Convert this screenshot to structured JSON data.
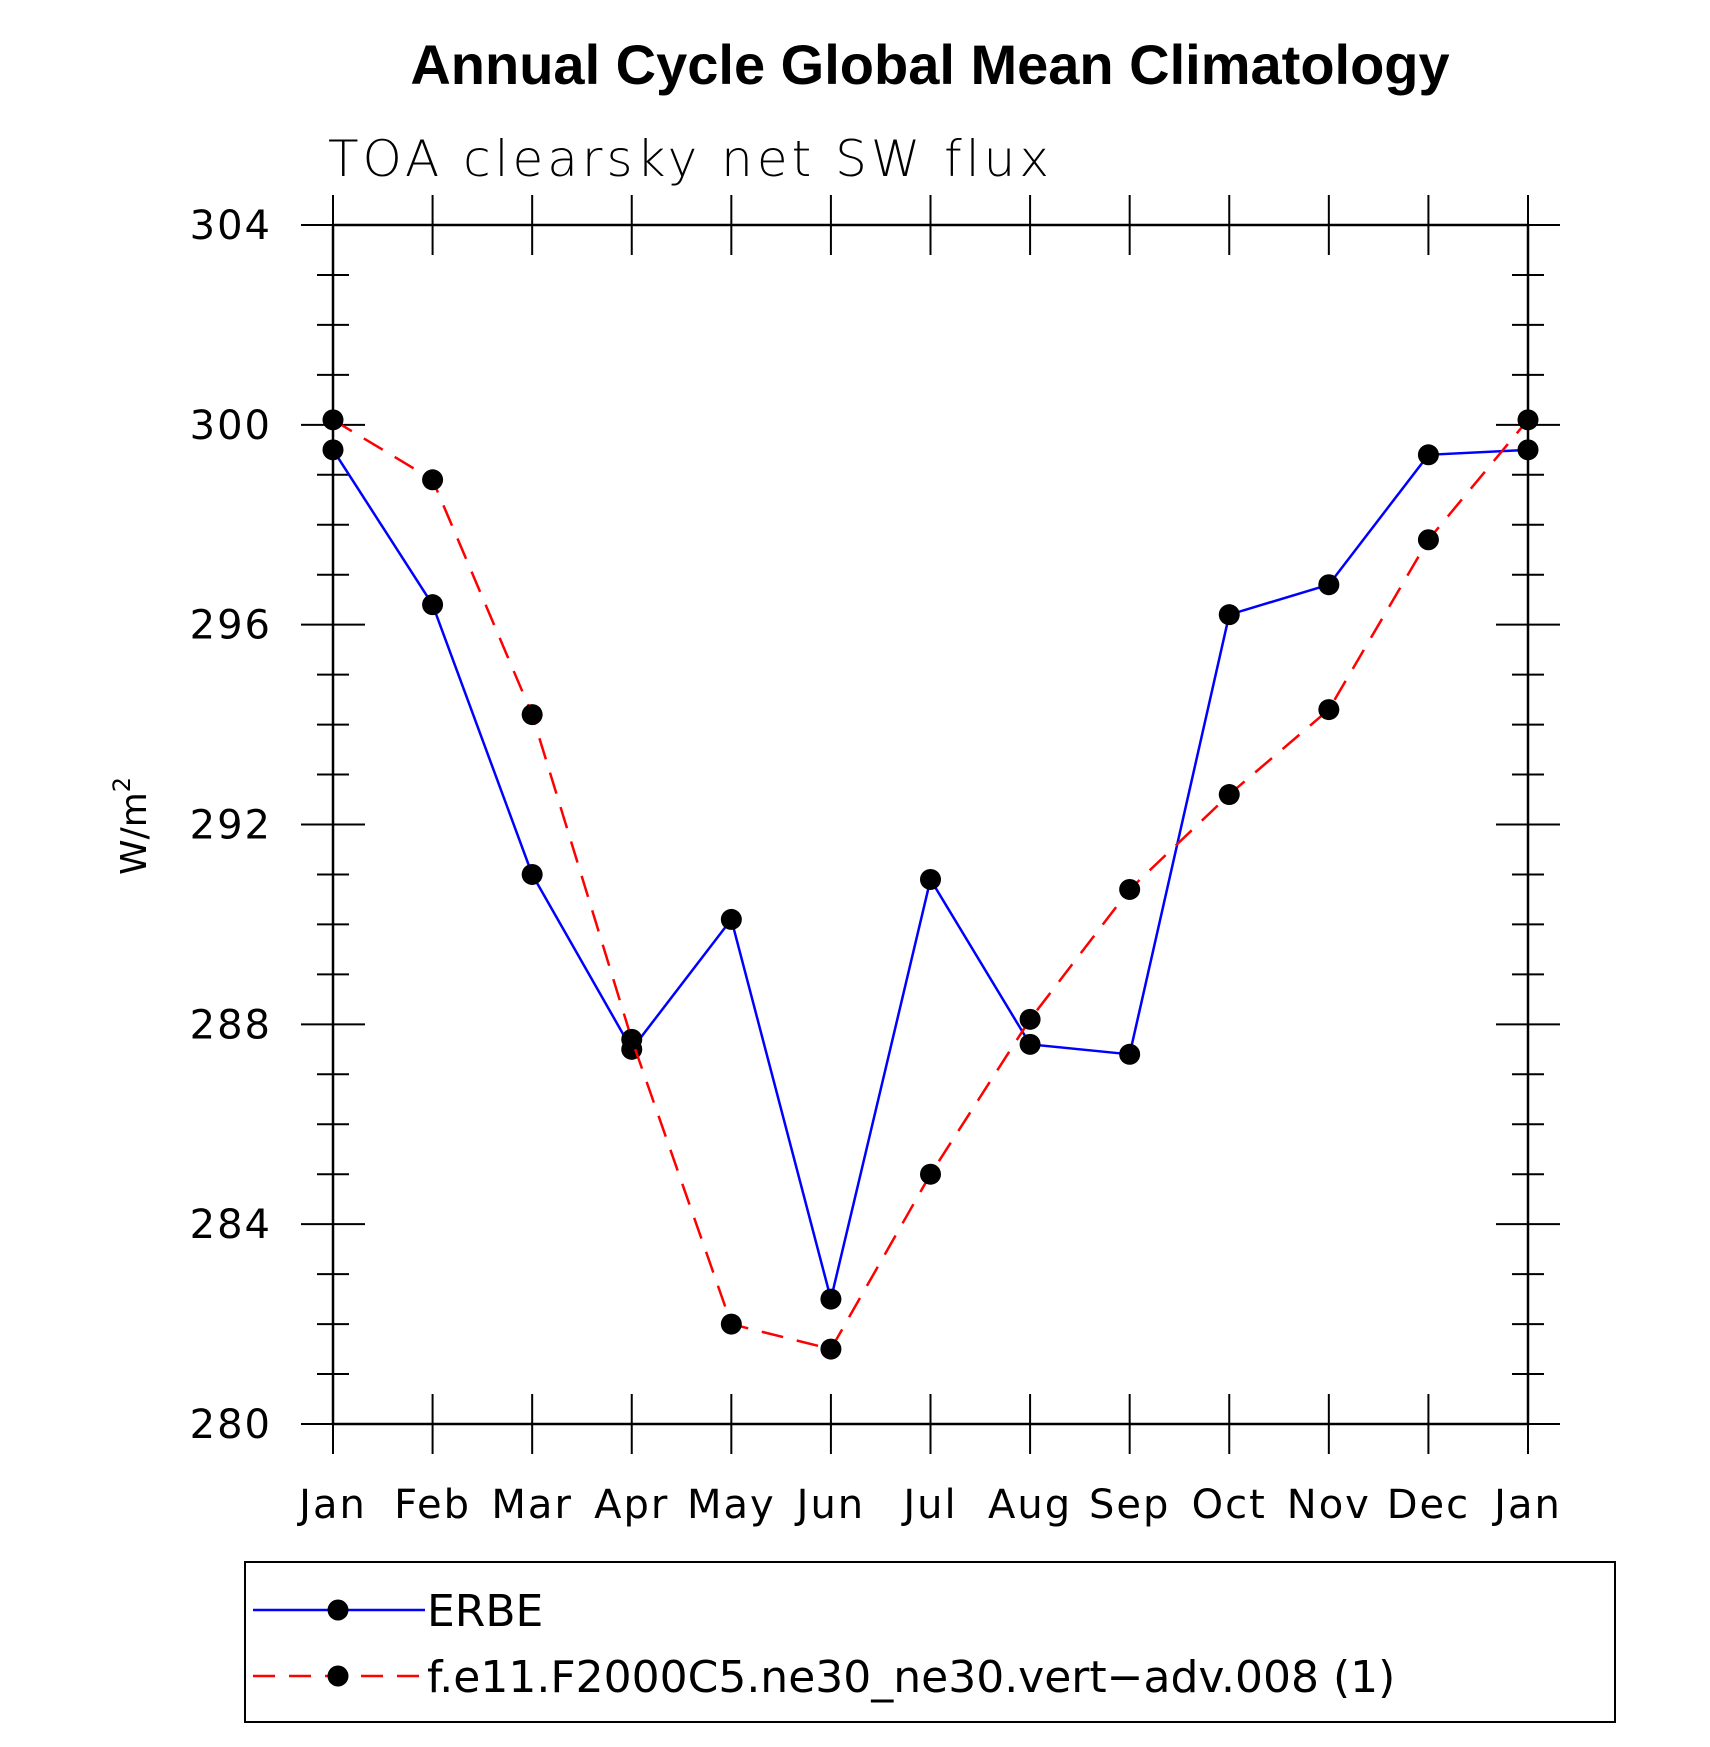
{
  "chart_data": {
    "type": "line",
    "title": "Annual Cycle Global Mean Climatology",
    "subtitle": "TOA clearsky net SW flux",
    "ylabel": "W/m",
    "ylabel_superscript": "2",
    "xlabel": "",
    "categories": [
      "Jan",
      "Feb",
      "Mar",
      "Apr",
      "May",
      "Jun",
      "Jul",
      "Aug",
      "Sep",
      "Oct",
      "Nov",
      "Dec",
      "Jan"
    ],
    "ylim": [
      280,
      304
    ],
    "yticks": [
      280,
      284,
      288,
      292,
      296,
      300,
      304
    ],
    "grid": false,
    "legend_position": "bottom",
    "series": [
      {
        "name": "ERBE",
        "color": "#0000ff",
        "linestyle": "solid",
        "values": [
          299.5,
          296.4,
          291.0,
          287.5,
          290.1,
          282.5,
          290.9,
          287.6,
          287.4,
          296.2,
          296.8,
          299.4,
          299.5
        ]
      },
      {
        "name": "f.e11.F2000C5.ne30_ne30.vert−adv.008 (1)",
        "color": "#ff0000",
        "linestyle": "dashed",
        "values": [
          300.1,
          298.9,
          294.2,
          287.7,
          282.0,
          281.5,
          285.0,
          288.1,
          290.7,
          292.6,
          294.3,
          297.7,
          300.1
        ]
      }
    ]
  }
}
